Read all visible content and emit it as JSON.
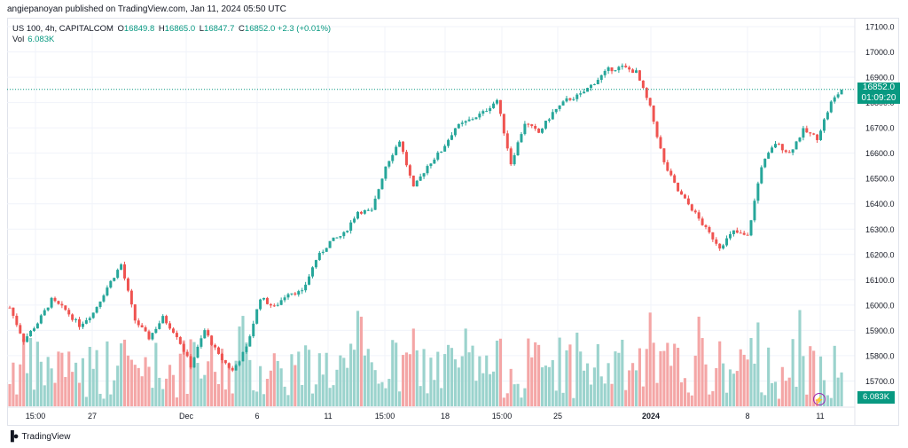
{
  "header": {
    "published": "angiepanoyan published on TradingView.com, Jan 11, 2024 05:50 UTC"
  },
  "legend": {
    "symbol": "US 100, 4h, CAPITALCOM",
    "open_key": "O",
    "open": "16849.8",
    "high_key": "H",
    "high": "16865.0",
    "low_key": "L",
    "low": "16847.7",
    "close_key": "C",
    "close": "16852.0",
    "change": "+2.3 (+0.01%)",
    "volume_label": "Vol",
    "volume": "6.083K"
  },
  "price_tag": {
    "price": "16852.0",
    "countdown": "01:09:20"
  },
  "volume_tag": "6.083K",
  "brand": {
    "name": "TradingView"
  },
  "colors": {
    "up": "#26a69a",
    "down": "#ef5350",
    "vol_up": "#9bd3cd",
    "vol_down": "#f4a6a6",
    "last_price": "#089981",
    "grid": "#f0f3fa"
  },
  "chart_data": {
    "type": "candlestick",
    "title": "US 100, 4h, CAPITALCOM",
    "y_axis": {
      "min": 15600,
      "max": 17100,
      "ticks": [
        "17100.0",
        "17000.0",
        "16900.0",
        "16800.0",
        "16700.0",
        "16600.0",
        "16500.0",
        "16400.0",
        "16300.0",
        "16200.0",
        "16100.0",
        "16000.0",
        "15900.0",
        "15800.0",
        "15700.0"
      ]
    },
    "x_axis": {
      "labels": [
        "15:00",
        "27",
        "Dec",
        "6",
        "11",
        "15:00",
        "18",
        "15:00",
        "25",
        "2024",
        "8",
        "11"
      ]
    },
    "last_price": 16852.0,
    "price_path": [
      {
        "x": 0,
        "y": 15990
      },
      {
        "x": 4,
        "y": 15860
      },
      {
        "x": 8,
        "y": 15930
      },
      {
        "x": 12,
        "y": 16020
      },
      {
        "x": 16,
        "y": 15980
      },
      {
        "x": 20,
        "y": 15920
      },
      {
        "x": 24,
        "y": 15970
      },
      {
        "x": 28,
        "y": 16070
      },
      {
        "x": 32,
        "y": 16160
      },
      {
        "x": 36,
        "y": 15940
      },
      {
        "x": 40,
        "y": 15870
      },
      {
        "x": 44,
        "y": 15950
      },
      {
        "x": 48,
        "y": 15880
      },
      {
        "x": 52,
        "y": 15760
      },
      {
        "x": 56,
        "y": 15900
      },
      {
        "x": 60,
        "y": 15800
      },
      {
        "x": 64,
        "y": 15740
      },
      {
        "x": 68,
        "y": 15830
      },
      {
        "x": 72,
        "y": 16030
      },
      {
        "x": 76,
        "y": 15990
      },
      {
        "x": 80,
        "y": 16050
      },
      {
        "x": 84,
        "y": 16050
      },
      {
        "x": 88,
        "y": 16180
      },
      {
        "x": 92,
        "y": 16250
      },
      {
        "x": 96,
        "y": 16280
      },
      {
        "x": 100,
        "y": 16370
      },
      {
        "x": 104,
        "y": 16370
      },
      {
        "x": 108,
        "y": 16550
      },
      {
        "x": 112,
        "y": 16650
      },
      {
        "x": 116,
        "y": 16460
      },
      {
        "x": 120,
        "y": 16550
      },
      {
        "x": 124,
        "y": 16610
      },
      {
        "x": 128,
        "y": 16700
      },
      {
        "x": 132,
        "y": 16730
      },
      {
        "x": 136,
        "y": 16760
      },
      {
        "x": 140,
        "y": 16810
      },
      {
        "x": 144,
        "y": 16560
      },
      {
        "x": 148,
        "y": 16720
      },
      {
        "x": 152,
        "y": 16680
      },
      {
        "x": 156,
        "y": 16760
      },
      {
        "x": 160,
        "y": 16810
      },
      {
        "x": 164,
        "y": 16830
      },
      {
        "x": 168,
        "y": 16880
      },
      {
        "x": 172,
        "y": 16930
      },
      {
        "x": 176,
        "y": 16940
      },
      {
        "x": 180,
        "y": 16920
      },
      {
        "x": 184,
        "y": 16780
      },
      {
        "x": 188,
        "y": 16560
      },
      {
        "x": 192,
        "y": 16450
      },
      {
        "x": 196,
        "y": 16380
      },
      {
        "x": 200,
        "y": 16300
      },
      {
        "x": 204,
        "y": 16230
      },
      {
        "x": 208,
        "y": 16290
      },
      {
        "x": 212,
        "y": 16270
      },
      {
        "x": 216,
        "y": 16550
      },
      {
        "x": 220,
        "y": 16640
      },
      {
        "x": 224,
        "y": 16600
      },
      {
        "x": 228,
        "y": 16690
      },
      {
        "x": 232,
        "y": 16660
      },
      {
        "x": 236,
        "y": 16800
      },
      {
        "x": 239,
        "y": 16852
      }
    ],
    "volume_max_k": 10
  }
}
